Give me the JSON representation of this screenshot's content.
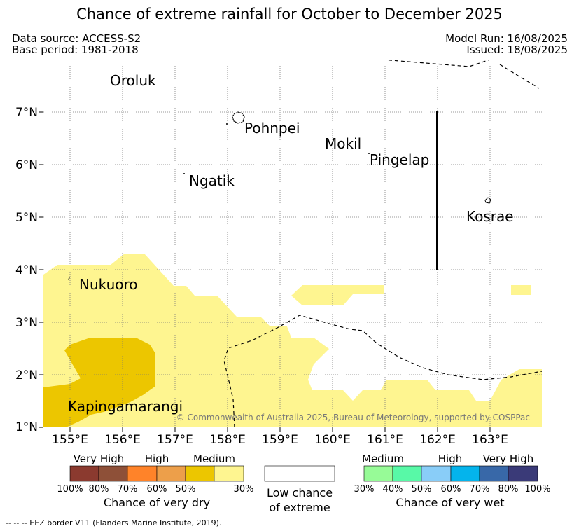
{
  "title": "Chance of extreme rainfall for October to December 2025",
  "header": {
    "data_source": "Data source: ACCESS-S2",
    "base_period": "Base period: 1981-2018",
    "model_run": "Model Run: 16/08/2025",
    "issued": "Issued: 18/08/2025"
  },
  "map": {
    "lat_labels": [
      "7°N",
      "6°N",
      "5°N",
      "4°N",
      "3°N",
      "2°N",
      "1°N"
    ],
    "lon_labels": [
      "155°E",
      "156°E",
      "157°E",
      "158°E",
      "159°E",
      "160°E",
      "161°E",
      "162°E",
      "163°E"
    ],
    "places": {
      "oroluk": "Oroluk",
      "pohnpei": "Pohnpei",
      "mokil": "Mokil",
      "pingelap": "Pingelap",
      "ngatik": "Ngatik",
      "kosrae": "Kosrae",
      "nukuoro": "Nukuoro",
      "kapingamarangi": "Kapingamarangi"
    },
    "copyright": "© Commonwealth of Australia 2025, Bureau of Meteorology, supported by COSPPac",
    "colors": {
      "dry_30_50": "#fef590",
      "dry_50_70": "#ecc600"
    }
  },
  "legend": {
    "dry": {
      "headers": [
        "Very High",
        "High",
        "Medium"
      ],
      "ticks": [
        "100%",
        "80%",
        "70%",
        "60%",
        "50%",
        "30%"
      ],
      "caption": "Chance of very dry",
      "colors": [
        "#8b3a2f",
        "#8e5038",
        "#ff8329",
        "#ed9f4a",
        "#ecc600",
        "#fef590"
      ]
    },
    "low": {
      "caption_line1": "Low chance",
      "caption_line2": "of extreme"
    },
    "wet": {
      "headers": [
        "Medium",
        "High",
        "Very High"
      ],
      "ticks": [
        "30%",
        "40%",
        "50%",
        "60%",
        "70%",
        "80%",
        "100%"
      ],
      "caption": "Chance of very wet",
      "colors": [
        "#97fb97",
        "#58f9a7",
        "#89cdf8",
        "#04b4ec",
        "#3868a8",
        "#3a3a78"
      ]
    }
  },
  "footer": "-- -- -- EEZ border V11 (Flanders Marine Institute, 2019)."
}
